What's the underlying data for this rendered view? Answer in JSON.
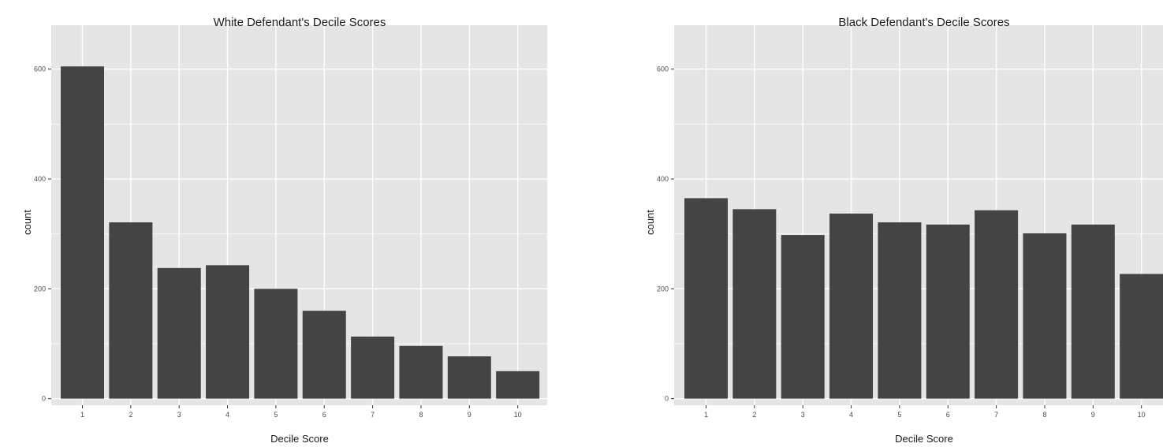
{
  "chart_data": [
    {
      "type": "bar",
      "title": "White Defendant's Decile Scores",
      "xlabel": "Decile Score",
      "ylabel": "count",
      "categories": [
        "1",
        "2",
        "3",
        "4",
        "5",
        "6",
        "7",
        "8",
        "9",
        "10"
      ],
      "values": [
        605,
        321,
        238,
        243,
        200,
        160,
        113,
        96,
        77,
        50
      ],
      "ylim": [
        -12,
        680
      ],
      "yticks": [
        0,
        200,
        400,
        600
      ],
      "grid": true,
      "colors": {
        "bar": "#444444",
        "panel": "#e5e5e5",
        "grid": "#ffffff"
      }
    },
    {
      "type": "bar",
      "title": "Black Defendant's Decile Scores",
      "xlabel": "Decile Score",
      "ylabel": "count",
      "categories": [
        "1",
        "2",
        "3",
        "4",
        "5",
        "6",
        "7",
        "8",
        "9",
        "10"
      ],
      "values": [
        365,
        345,
        298,
        337,
        321,
        317,
        343,
        301,
        317,
        227
      ],
      "ylim": [
        -12,
        680
      ],
      "yticks": [
        0,
        200,
        400,
        600
      ],
      "grid": true,
      "colors": {
        "bar": "#444444",
        "panel": "#e5e5e5",
        "grid": "#ffffff"
      }
    }
  ]
}
